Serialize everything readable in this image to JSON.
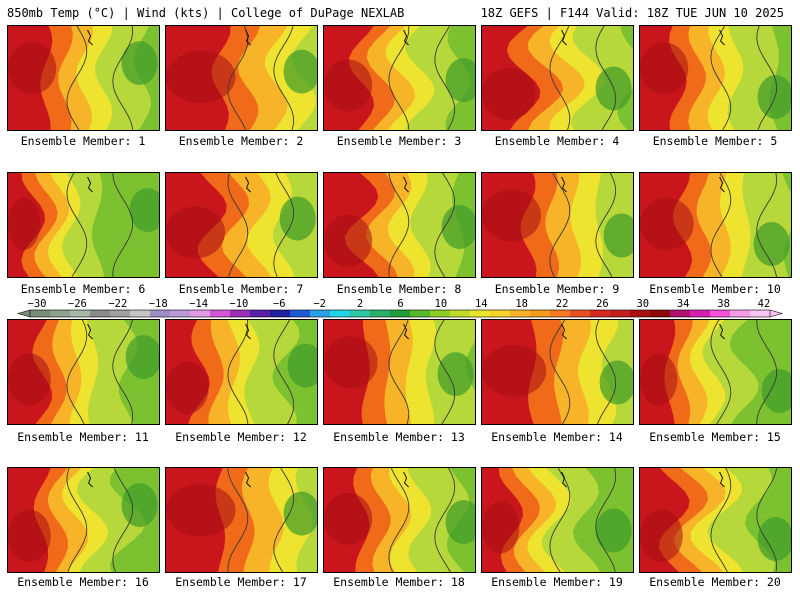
{
  "header": {
    "left": "850mb Temp (°C) | Wind (kts) | College of DuPage NEXLAB",
    "right": "18Z GEFS | F144 Valid: 18Z TUE JUN 10 2025"
  },
  "caption_prefix": "Ensemble Member: ",
  "members": [
    {
      "id": "1",
      "hot": 0.45,
      "variant": 0
    },
    {
      "id": "2",
      "hot": 0.65,
      "variant": 1
    },
    {
      "id": "3",
      "hot": 0.45,
      "variant": 2
    },
    {
      "id": "4",
      "hot": 0.5,
      "variant": 3
    },
    {
      "id": "5",
      "hot": 0.45,
      "variant": 4
    },
    {
      "id": "6",
      "hot": 0.3,
      "variant": 5
    },
    {
      "id": "7",
      "hot": 0.55,
      "variant": 6
    },
    {
      "id": "8",
      "hot": 0.45,
      "variant": 7
    },
    {
      "id": "9",
      "hot": 0.55,
      "variant": 8
    },
    {
      "id": "10",
      "hot": 0.5,
      "variant": 9
    },
    {
      "id": "11",
      "hot": 0.4,
      "variant": 10
    },
    {
      "id": "12",
      "hot": 0.4,
      "variant": 11
    },
    {
      "id": "13",
      "hot": 0.5,
      "variant": 12
    },
    {
      "id": "14",
      "hot": 0.6,
      "variant": 13
    },
    {
      "id": "15",
      "hot": 0.35,
      "variant": 14
    },
    {
      "id": "16",
      "hot": 0.4,
      "variant": 15
    },
    {
      "id": "17",
      "hot": 0.65,
      "variant": 16
    },
    {
      "id": "18",
      "hot": 0.45,
      "variant": 17
    },
    {
      "id": "19",
      "hot": 0.35,
      "variant": 18
    },
    {
      "id": "20",
      "hot": 0.4,
      "variant": 19
    }
  ],
  "colorbar": {
    "labels": [
      "−30",
      "−26",
      "−22",
      "−18",
      "−14",
      "−10",
      "−6",
      "−2",
      "2",
      "6",
      "10",
      "14",
      "18",
      "22",
      "26",
      "30",
      "34",
      "38",
      "42"
    ],
    "colors": [
      "#7a8c7a",
      "#8ea08e",
      "#a9b8a9",
      "#8a8a8a",
      "#a0a0a0",
      "#c4c4c4",
      "#9d8fc4",
      "#b99ad6",
      "#e19ae6",
      "#d455d6",
      "#9a2fb8",
      "#5a1fa8",
      "#2020a0",
      "#1f5ad6",
      "#2aa0e6",
      "#1fd6e6",
      "#2ec7a5",
      "#2bb06a",
      "#229c38",
      "#56b82a",
      "#8ccd2a",
      "#c0dc2a",
      "#e6e62a",
      "#f5d42a",
      "#f5b42a",
      "#f59c1f",
      "#f57a1f",
      "#e6521f",
      "#d62a1f",
      "#c41f1f",
      "#a81010",
      "#8c0a0a",
      "#b01070",
      "#d61fae",
      "#f550d6",
      "#f59ce6",
      "#f5c4f0"
    ]
  },
  "colors": {
    "hot": "#c8161c",
    "warm": "#f06a1a",
    "mild": "#f7b428",
    "yellow": "#eee430",
    "lightgreen": "#b6d83a",
    "green": "#7cc130",
    "darkgreen": "#3e9b2a",
    "contour": "#3a3a3a"
  }
}
